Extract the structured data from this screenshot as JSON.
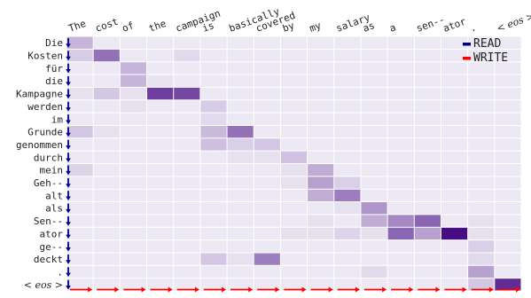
{
  "chart_data": {
    "type": "heatmap",
    "x_tokens": [
      "The",
      "cost",
      "of",
      "the",
      "campaign",
      "is",
      "basically",
      "covered",
      "by",
      "my",
      "salary",
      "as",
      "a",
      "sen--",
      "ator",
      ".",
      "< eos >"
    ],
    "y_tokens": [
      "Die",
      "Kosten",
      "für",
      "die",
      "Kampagne",
      "werden",
      "im",
      "Grunde",
      "genommen",
      "durch",
      "mein",
      "Geh--",
      "alt",
      "als",
      "Sen--",
      "ator",
      "ge--",
      "deckt",
      ".",
      "< eos >"
    ],
    "values": [
      [
        0.22,
        0.03,
        0.03,
        0.03,
        0.03,
        0.03,
        0.03,
        0.03,
        0.03,
        0.03,
        0.03,
        0.03,
        0.03,
        0.03,
        0.03,
        0.03,
        0.03
      ],
      [
        0.13,
        0.5,
        0.03,
        0.03,
        0.08,
        0.03,
        0.03,
        0.03,
        0.03,
        0.03,
        0.03,
        0.03,
        0.03,
        0.03,
        0.03,
        0.03,
        0.03
      ],
      [
        0.03,
        0.03,
        0.22,
        0.03,
        0.03,
        0.03,
        0.03,
        0.03,
        0.03,
        0.03,
        0.03,
        0.03,
        0.03,
        0.03,
        0.03,
        0.03,
        0.03
      ],
      [
        0.03,
        0.03,
        0.22,
        0.05,
        0.03,
        0.03,
        0.03,
        0.03,
        0.03,
        0.03,
        0.03,
        0.03,
        0.03,
        0.03,
        0.03,
        0.03,
        0.03
      ],
      [
        0.06,
        0.15,
        0.06,
        0.72,
        0.68,
        0.03,
        0.03,
        0.03,
        0.03,
        0.03,
        0.03,
        0.03,
        0.03,
        0.03,
        0.03,
        0.03,
        0.03
      ],
      [
        0.03,
        0.03,
        0.06,
        0.03,
        0.03,
        0.13,
        0.03,
        0.03,
        0.03,
        0.03,
        0.03,
        0.03,
        0.03,
        0.03,
        0.03,
        0.03,
        0.03
      ],
      [
        0.03,
        0.03,
        0.03,
        0.03,
        0.03,
        0.08,
        0.03,
        0.03,
        0.03,
        0.03,
        0.03,
        0.03,
        0.03,
        0.03,
        0.03,
        0.03,
        0.03
      ],
      [
        0.15,
        0.06,
        0.03,
        0.03,
        0.03,
        0.2,
        0.5,
        0.03,
        0.03,
        0.03,
        0.03,
        0.03,
        0.03,
        0.03,
        0.03,
        0.03,
        0.03
      ],
      [
        0.03,
        0.03,
        0.03,
        0.03,
        0.03,
        0.18,
        0.12,
        0.15,
        0.03,
        0.03,
        0.03,
        0.03,
        0.03,
        0.03,
        0.03,
        0.03,
        0.03
      ],
      [
        0.03,
        0.03,
        0.03,
        0.03,
        0.03,
        0.03,
        0.06,
        0.06,
        0.17,
        0.03,
        0.03,
        0.03,
        0.03,
        0.03,
        0.03,
        0.03,
        0.03
      ],
      [
        0.1,
        0.03,
        0.03,
        0.03,
        0.03,
        0.03,
        0.03,
        0.03,
        0.06,
        0.25,
        0.03,
        0.03,
        0.03,
        0.03,
        0.03,
        0.03,
        0.03
      ],
      [
        0.03,
        0.03,
        0.03,
        0.03,
        0.03,
        0.03,
        0.03,
        0.03,
        0.06,
        0.3,
        0.12,
        0.03,
        0.03,
        0.03,
        0.03,
        0.03,
        0.03
      ],
      [
        0.03,
        0.03,
        0.03,
        0.03,
        0.03,
        0.03,
        0.03,
        0.03,
        0.03,
        0.25,
        0.45,
        0.03,
        0.03,
        0.03,
        0.03,
        0.03,
        0.03
      ],
      [
        0.03,
        0.03,
        0.03,
        0.03,
        0.03,
        0.03,
        0.03,
        0.03,
        0.03,
        0.03,
        0.06,
        0.35,
        0.03,
        0.03,
        0.03,
        0.03,
        0.03
      ],
      [
        0.03,
        0.03,
        0.03,
        0.03,
        0.03,
        0.03,
        0.03,
        0.03,
        0.03,
        0.06,
        0.03,
        0.25,
        0.4,
        0.55,
        0.03,
        0.06,
        0.03
      ],
      [
        0.03,
        0.03,
        0.03,
        0.03,
        0.03,
        0.03,
        0.03,
        0.03,
        0.06,
        0.06,
        0.1,
        0.06,
        0.55,
        0.3,
        0.95,
        0.06,
        0.03
      ],
      [
        0.03,
        0.03,
        0.03,
        0.03,
        0.03,
        0.03,
        0.03,
        0.03,
        0.03,
        0.03,
        0.03,
        0.03,
        0.03,
        0.03,
        0.03,
        0.12,
        0.03
      ],
      [
        0.03,
        0.03,
        0.03,
        0.03,
        0.03,
        0.15,
        0.06,
        0.45,
        0.03,
        0.03,
        0.03,
        0.03,
        0.03,
        0.03,
        0.03,
        0.08,
        0.03
      ],
      [
        0.03,
        0.03,
        0.03,
        0.03,
        0.03,
        0.03,
        0.03,
        0.03,
        0.03,
        0.03,
        0.03,
        0.08,
        0.03,
        0.03,
        0.03,
        0.3,
        0.03
      ],
      [
        0.03,
        0.03,
        0.03,
        0.03,
        0.03,
        0.03,
        0.03,
        0.03,
        0.03,
        0.03,
        0.03,
        0.03,
        0.03,
        0.03,
        0.03,
        0.15,
        0.8
      ]
    ],
    "legend": [
      {
        "label": "READ",
        "color": "#000080"
      },
      {
        "label": "WRITE",
        "color": "#ff0000"
      }
    ],
    "legend_position": "top-right",
    "read_color": "#00008b",
    "write_color": "#ff0000",
    "cell_color": "#3f007d"
  }
}
